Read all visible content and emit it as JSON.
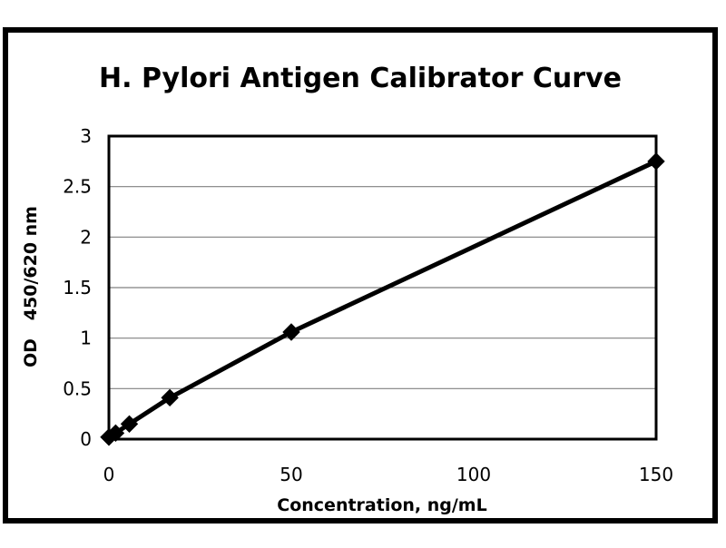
{
  "chart_data": {
    "type": "line",
    "title": "H. Pylori Antigen Calibrator Curve",
    "xlabel": "Concentration, ng/mL",
    "ylabel": "OD   450/620 nm",
    "xlim": [
      0,
      150
    ],
    "ylim": [
      0,
      3
    ],
    "xticks": [
      "0",
      "50",
      "100",
      "150"
    ],
    "yticks": [
      "0",
      "0.5",
      "1",
      "1.5",
      "2",
      "2.5",
      "3"
    ],
    "grid": "horizontal",
    "legend": "none",
    "series": [
      {
        "x": [
          0,
          1.85,
          5.6,
          16.7,
          50,
          150
        ],
        "y": [
          0.02,
          0.06,
          0.15,
          0.41,
          1.06,
          2.75
        ],
        "marker": "diamond",
        "color": "#000000"
      }
    ]
  },
  "colors": {
    "line": "#000000",
    "grid": "#808080",
    "frame": "#000000",
    "background": "#ffffff"
  }
}
